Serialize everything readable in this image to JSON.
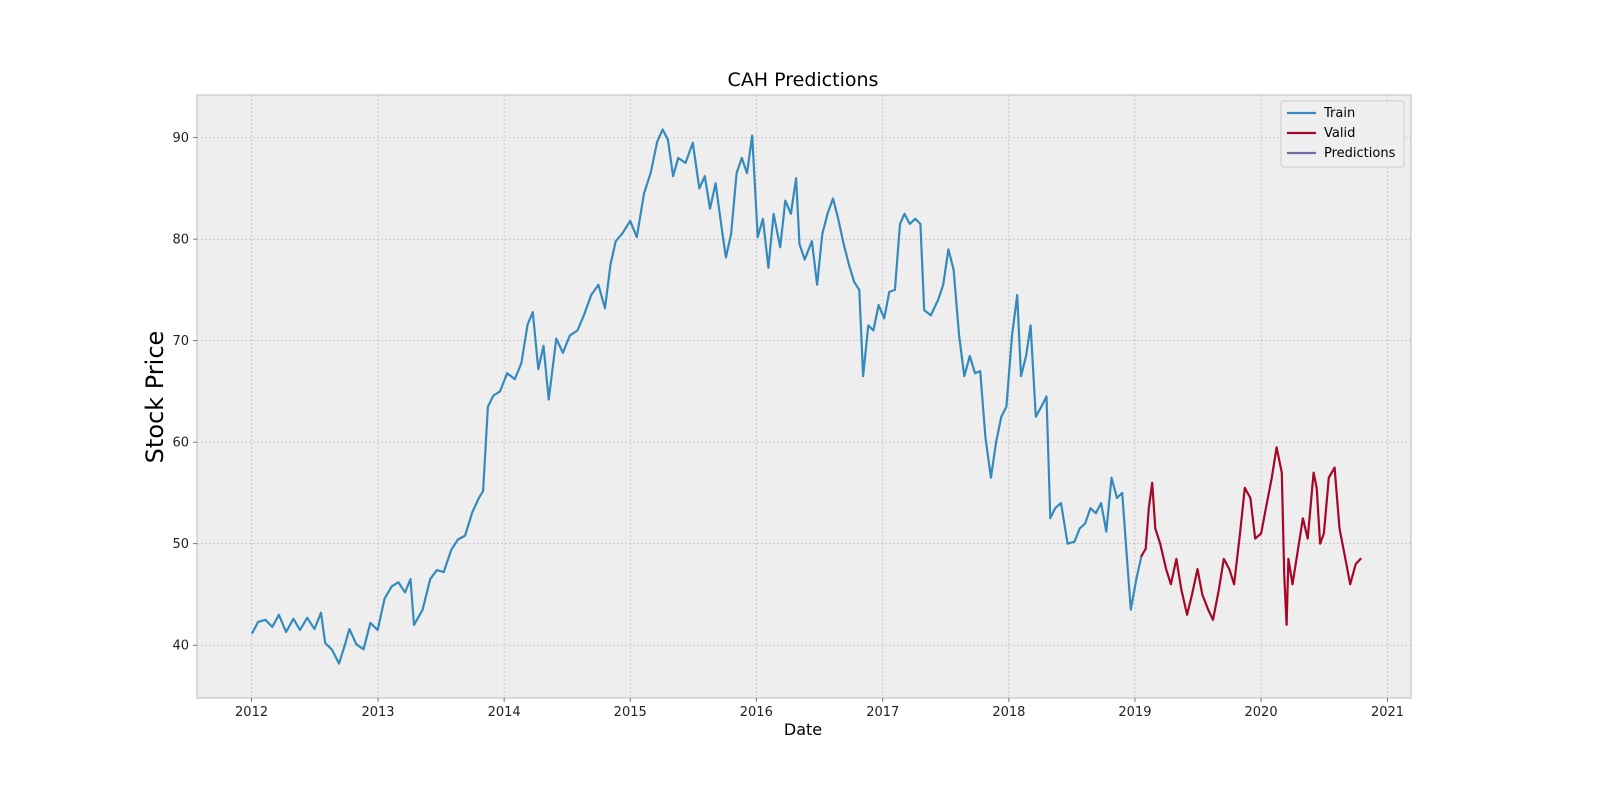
{
  "chart_data": {
    "type": "line",
    "title": "CAH Predictions",
    "xlabel": "Date",
    "ylabel": "Stock Price",
    "xlim": [
      "2011-07-27",
      "2021-03-10"
    ],
    "ylim": [
      34.8,
      94.2
    ],
    "x_ticks": [
      "2012",
      "2013",
      "2014",
      "2015",
      "2016",
      "2017",
      "2018",
      "2019",
      "2020",
      "2021"
    ],
    "y_ticks": [
      40,
      50,
      60,
      70,
      80,
      90
    ],
    "grid": true,
    "legend_position": "top-right",
    "colors": {
      "Train": "#348ABD",
      "Valid": "#A60628",
      "Predictions": "#7A68A6"
    },
    "series": [
      {
        "name": "Train",
        "points": [
          [
            "2012-01-03",
            41.2
          ],
          [
            "2012-01-20",
            42.3
          ],
          [
            "2012-02-10",
            42.5
          ],
          [
            "2012-03-01",
            41.8
          ],
          [
            "2012-03-20",
            43.0
          ],
          [
            "2012-04-10",
            41.3
          ],
          [
            "2012-05-01",
            42.6
          ],
          [
            "2012-05-20",
            41.5
          ],
          [
            "2012-06-10",
            42.7
          ],
          [
            "2012-07-01",
            41.6
          ],
          [
            "2012-07-20",
            43.2
          ],
          [
            "2012-08-01",
            40.2
          ],
          [
            "2012-08-20",
            39.6
          ],
          [
            "2012-09-10",
            38.2
          ],
          [
            "2012-09-25",
            39.8
          ],
          [
            "2012-10-10",
            41.6
          ],
          [
            "2012-10-30",
            40.1
          ],
          [
            "2012-11-20",
            39.6
          ],
          [
            "2012-12-10",
            42.2
          ],
          [
            "2012-12-31",
            41.5
          ],
          [
            "2013-01-20",
            44.6
          ],
          [
            "2013-02-10",
            45.8
          ],
          [
            "2013-03-01",
            46.2
          ],
          [
            "2013-03-20",
            45.2
          ],
          [
            "2013-04-05",
            46.5
          ],
          [
            "2013-04-15",
            42.0
          ],
          [
            "2013-05-10",
            43.5
          ],
          [
            "2013-06-01",
            46.5
          ],
          [
            "2013-06-20",
            47.4
          ],
          [
            "2013-07-10",
            47.2
          ],
          [
            "2013-08-01",
            49.4
          ],
          [
            "2013-08-20",
            50.4
          ],
          [
            "2013-09-10",
            50.8
          ],
          [
            "2013-10-01",
            53.1
          ],
          [
            "2013-10-20",
            54.5
          ],
          [
            "2013-11-01",
            55.2
          ],
          [
            "2013-11-15",
            63.5
          ],
          [
            "2013-12-01",
            64.6
          ],
          [
            "2013-12-20",
            65.0
          ],
          [
            "2014-01-10",
            66.8
          ],
          [
            "2014-02-01",
            66.2
          ],
          [
            "2014-02-20",
            67.8
          ],
          [
            "2014-03-10",
            71.6
          ],
          [
            "2014-03-25",
            72.8
          ],
          [
            "2014-04-10",
            67.2
          ],
          [
            "2014-04-25",
            69.5
          ],
          [
            "2014-05-10",
            64.2
          ],
          [
            "2014-06-01",
            70.2
          ],
          [
            "2014-06-20",
            68.8
          ],
          [
            "2014-07-10",
            70.5
          ],
          [
            "2014-08-01",
            71.0
          ],
          [
            "2014-08-20",
            72.5
          ],
          [
            "2014-09-10",
            74.5
          ],
          [
            "2014-10-01",
            75.5
          ],
          [
            "2014-10-20",
            73.2
          ],
          [
            "2014-11-05",
            77.5
          ],
          [
            "2014-11-20",
            79.8
          ],
          [
            "2014-12-10",
            80.6
          ],
          [
            "2015-01-01",
            81.8
          ],
          [
            "2015-01-20",
            80.2
          ],
          [
            "2015-02-10",
            84.5
          ],
          [
            "2015-03-01",
            86.5
          ],
          [
            "2015-03-20",
            89.6
          ],
          [
            "2015-04-05",
            90.8
          ],
          [
            "2015-04-20",
            89.8
          ],
          [
            "2015-05-05",
            86.2
          ],
          [
            "2015-05-20",
            88.0
          ],
          [
            "2015-06-10",
            87.5
          ],
          [
            "2015-07-01",
            89.5
          ],
          [
            "2015-07-20",
            85.0
          ],
          [
            "2015-08-05",
            86.2
          ],
          [
            "2015-08-20",
            83.0
          ],
          [
            "2015-09-05",
            85.5
          ],
          [
            "2015-09-25",
            80.5
          ],
          [
            "2015-10-05",
            78.2
          ],
          [
            "2015-10-20",
            80.5
          ],
          [
            "2015-11-05",
            86.5
          ],
          [
            "2015-11-20",
            88.0
          ],
          [
            "2015-12-05",
            86.5
          ],
          [
            "2015-12-20",
            90.2
          ],
          [
            "2016-01-05",
            80.2
          ],
          [
            "2016-01-20",
            82.0
          ],
          [
            "2016-02-05",
            77.2
          ],
          [
            "2016-02-20",
            82.5
          ],
          [
            "2016-03-10",
            79.2
          ],
          [
            "2016-03-25",
            83.8
          ],
          [
            "2016-04-10",
            82.5
          ],
          [
            "2016-04-25",
            86.0
          ],
          [
            "2016-05-05",
            79.5
          ],
          [
            "2016-05-20",
            78.0
          ],
          [
            "2016-06-10",
            79.8
          ],
          [
            "2016-06-25",
            75.5
          ],
          [
            "2016-07-10",
            80.5
          ],
          [
            "2016-07-25",
            82.5
          ],
          [
            "2016-08-10",
            84.0
          ],
          [
            "2016-08-25",
            82.0
          ],
          [
            "2016-09-10",
            79.5
          ],
          [
            "2016-09-25",
            77.5
          ],
          [
            "2016-10-10",
            75.8
          ],
          [
            "2016-10-25",
            75.0
          ],
          [
            "2016-11-05",
            66.5
          ],
          [
            "2016-11-20",
            71.5
          ],
          [
            "2016-12-05",
            71.0
          ],
          [
            "2016-12-20",
            73.5
          ],
          [
            "2017-01-05",
            72.2
          ],
          [
            "2017-01-20",
            74.8
          ],
          [
            "2017-02-05",
            75.0
          ],
          [
            "2017-02-20",
            81.5
          ],
          [
            "2017-03-05",
            82.5
          ],
          [
            "2017-03-20",
            81.5
          ],
          [
            "2017-04-05",
            82.0
          ],
          [
            "2017-04-20",
            81.5
          ],
          [
            "2017-05-01",
            73.0
          ],
          [
            "2017-05-20",
            72.5
          ],
          [
            "2017-06-10",
            74.0
          ],
          [
            "2017-06-25",
            75.5
          ],
          [
            "2017-07-10",
            79.0
          ],
          [
            "2017-07-25",
            77.0
          ],
          [
            "2017-08-10",
            70.5
          ],
          [
            "2017-08-25",
            66.5
          ],
          [
            "2017-09-10",
            68.5
          ],
          [
            "2017-09-25",
            66.8
          ],
          [
            "2017-10-10",
            67.0
          ],
          [
            "2017-10-25",
            60.5
          ],
          [
            "2017-11-10",
            56.5
          ],
          [
            "2017-11-25",
            60.0
          ],
          [
            "2017-12-10",
            62.5
          ],
          [
            "2017-12-25",
            63.5
          ],
          [
            "2018-01-10",
            70.5
          ],
          [
            "2018-01-25",
            74.5
          ],
          [
            "2018-02-05",
            66.5
          ],
          [
            "2018-02-20",
            68.5
          ],
          [
            "2018-03-05",
            71.5
          ],
          [
            "2018-03-20",
            62.5
          ],
          [
            "2018-04-05",
            63.5
          ],
          [
            "2018-04-20",
            64.5
          ],
          [
            "2018-05-01",
            52.5
          ],
          [
            "2018-05-15",
            53.5
          ],
          [
            "2018-06-01",
            54.0
          ],
          [
            "2018-06-20",
            50.0
          ],
          [
            "2018-07-10",
            50.2
          ],
          [
            "2018-07-25",
            51.5
          ],
          [
            "2018-08-10",
            52.0
          ],
          [
            "2018-08-25",
            53.5
          ],
          [
            "2018-09-10",
            53.0
          ],
          [
            "2018-09-25",
            54.0
          ],
          [
            "2018-10-10",
            51.2
          ],
          [
            "2018-10-25",
            56.5
          ],
          [
            "2018-11-10",
            54.5
          ],
          [
            "2018-11-25",
            55.0
          ],
          [
            "2018-12-10",
            48.0
          ],
          [
            "2018-12-20",
            43.5
          ],
          [
            "2019-01-05",
            46.5
          ],
          [
            "2019-01-20",
            48.8
          ]
        ]
      },
      {
        "name": "Valid",
        "points": [
          [
            "2019-01-20",
            48.8
          ],
          [
            "2019-02-01",
            49.5
          ],
          [
            "2019-02-10",
            53.5
          ],
          [
            "2019-02-20",
            56.0
          ],
          [
            "2019-03-01",
            51.5
          ],
          [
            "2019-03-15",
            50.0
          ],
          [
            "2019-04-01",
            47.5
          ],
          [
            "2019-04-15",
            46.0
          ],
          [
            "2019-05-01",
            48.5
          ],
          [
            "2019-05-15",
            45.5
          ],
          [
            "2019-06-01",
            43.0
          ],
          [
            "2019-06-15",
            45.0
          ],
          [
            "2019-07-01",
            47.5
          ],
          [
            "2019-07-15",
            45.0
          ],
          [
            "2019-08-01",
            43.5
          ],
          [
            "2019-08-15",
            42.5
          ],
          [
            "2019-09-01",
            45.5
          ],
          [
            "2019-09-15",
            48.5
          ],
          [
            "2019-10-01",
            47.5
          ],
          [
            "2019-10-15",
            46.0
          ],
          [
            "2019-11-01",
            51.0
          ],
          [
            "2019-11-15",
            55.5
          ],
          [
            "2019-12-01",
            54.5
          ],
          [
            "2019-12-15",
            50.5
          ],
          [
            "2020-01-01",
            51.0
          ],
          [
            "2020-01-15",
            53.5
          ],
          [
            "2020-02-01",
            56.5
          ],
          [
            "2020-02-15",
            59.5
          ],
          [
            "2020-03-01",
            57.0
          ],
          [
            "2020-03-08",
            47.0
          ],
          [
            "2020-03-15",
            42.0
          ],
          [
            "2020-03-20",
            48.5
          ],
          [
            "2020-04-01",
            46.0
          ],
          [
            "2020-04-15",
            49.0
          ],
          [
            "2020-05-01",
            52.5
          ],
          [
            "2020-05-15",
            50.5
          ],
          [
            "2020-06-01",
            57.0
          ],
          [
            "2020-06-10",
            55.5
          ],
          [
            "2020-06-20",
            50.0
          ],
          [
            "2020-07-01",
            51.0
          ],
          [
            "2020-07-15",
            56.5
          ],
          [
            "2020-08-01",
            57.5
          ],
          [
            "2020-08-15",
            51.5
          ],
          [
            "2020-09-01",
            48.5
          ],
          [
            "2020-09-15",
            46.0
          ],
          [
            "2020-10-01",
            48.0
          ],
          [
            "2020-10-15",
            48.5
          ]
        ]
      },
      {
        "name": "Predictions",
        "points": []
      }
    ]
  }
}
